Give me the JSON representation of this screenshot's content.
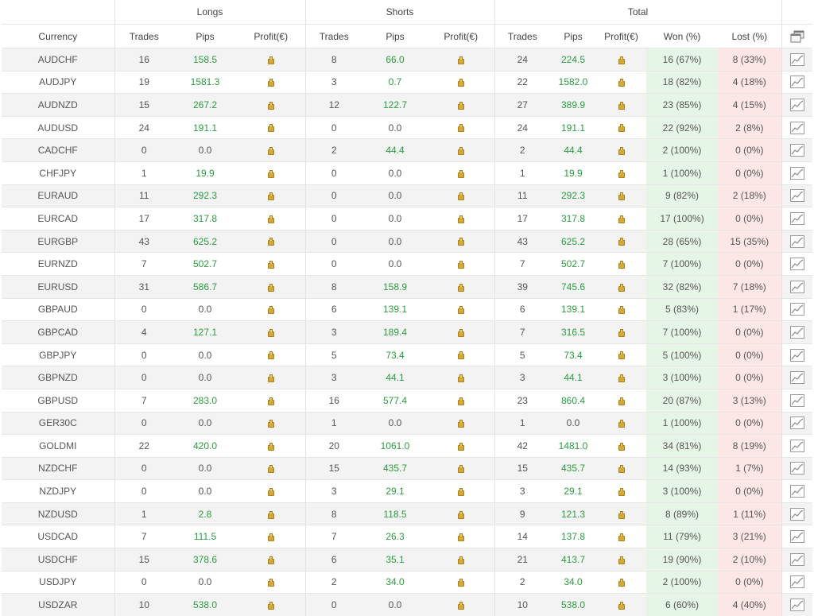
{
  "groups": {
    "longs": "Longs",
    "shorts": "Shorts",
    "total": "Total"
  },
  "columns": {
    "currency": "Currency",
    "trades": "Trades",
    "pips": "Pips",
    "profit": "Profit(€)",
    "won": "Won (%)",
    "lost": "Lost (%)"
  },
  "colors": {
    "positive": "#2a9d3f",
    "won_bg": "#e6f6e6",
    "lost_bg": "#fde6e6"
  },
  "icons": {
    "header": "popup-windows-icon",
    "row": "chart-icon",
    "profit": "money-bag-icon"
  },
  "rows": [
    {
      "currency": "AUDCHF",
      "lt": "16",
      "lp": "158.5",
      "st": "8",
      "sp": "66.0",
      "tt": "24",
      "tp": "224.5",
      "won": "16 (67%)",
      "lost": "8 (33%)"
    },
    {
      "currency": "AUDJPY",
      "lt": "19",
      "lp": "1581.3",
      "st": "3",
      "sp": "0.7",
      "tt": "22",
      "tp": "1582.0",
      "won": "18 (82%)",
      "lost": "4 (18%)"
    },
    {
      "currency": "AUDNZD",
      "lt": "15",
      "lp": "267.2",
      "st": "12",
      "sp": "122.7",
      "tt": "27",
      "tp": "389.9",
      "won": "23 (85%)",
      "lost": "4 (15%)"
    },
    {
      "currency": "AUDUSD",
      "lt": "24",
      "lp": "191.1",
      "st": "0",
      "sp": "0.0",
      "tt": "24",
      "tp": "191.1",
      "won": "22 (92%)",
      "lost": "2 (8%)"
    },
    {
      "currency": "CADCHF",
      "lt": "0",
      "lp": "0.0",
      "st": "2",
      "sp": "44.4",
      "tt": "2",
      "tp": "44.4",
      "won": "2 (100%)",
      "lost": "0 (0%)"
    },
    {
      "currency": "CHFJPY",
      "lt": "1",
      "lp": "19.9",
      "st": "0",
      "sp": "0.0",
      "tt": "1",
      "tp": "19.9",
      "won": "1 (100%)",
      "lost": "0 (0%)"
    },
    {
      "currency": "EURAUD",
      "lt": "11",
      "lp": "292.3",
      "st": "0",
      "sp": "0.0",
      "tt": "11",
      "tp": "292.3",
      "won": "9 (82%)",
      "lost": "2 (18%)"
    },
    {
      "currency": "EURCAD",
      "lt": "17",
      "lp": "317.8",
      "st": "0",
      "sp": "0.0",
      "tt": "17",
      "tp": "317.8",
      "won": "17 (100%)",
      "lost": "0 (0%)"
    },
    {
      "currency": "EURGBP",
      "lt": "43",
      "lp": "625.2",
      "st": "0",
      "sp": "0.0",
      "tt": "43",
      "tp": "625.2",
      "won": "28 (65%)",
      "lost": "15 (35%)"
    },
    {
      "currency": "EURNZD",
      "lt": "7",
      "lp": "502.7",
      "st": "0",
      "sp": "0.0",
      "tt": "7",
      "tp": "502.7",
      "won": "7 (100%)",
      "lost": "0 (0%)"
    },
    {
      "currency": "EURUSD",
      "lt": "31",
      "lp": "586.7",
      "st": "8",
      "sp": "158.9",
      "tt": "39",
      "tp": "745.6",
      "won": "32 (82%)",
      "lost": "7 (18%)"
    },
    {
      "currency": "GBPAUD",
      "lt": "0",
      "lp": "0.0",
      "st": "6",
      "sp": "139.1",
      "tt": "6",
      "tp": "139.1",
      "won": "5 (83%)",
      "lost": "1 (17%)"
    },
    {
      "currency": "GBPCAD",
      "lt": "4",
      "lp": "127.1",
      "st": "3",
      "sp": "189.4",
      "tt": "7",
      "tp": "316.5",
      "won": "7 (100%)",
      "lost": "0 (0%)"
    },
    {
      "currency": "GBPJPY",
      "lt": "0",
      "lp": "0.0",
      "st": "5",
      "sp": "73.4",
      "tt": "5",
      "tp": "73.4",
      "won": "5 (100%)",
      "lost": "0 (0%)"
    },
    {
      "currency": "GBPNZD",
      "lt": "0",
      "lp": "0.0",
      "st": "3",
      "sp": "44.1",
      "tt": "3",
      "tp": "44.1",
      "won": "3 (100%)",
      "lost": "0 (0%)"
    },
    {
      "currency": "GBPUSD",
      "lt": "7",
      "lp": "283.0",
      "st": "16",
      "sp": "577.4",
      "tt": "23",
      "tp": "860.4",
      "won": "20 (87%)",
      "lost": "3 (13%)"
    },
    {
      "currency": "GER30C",
      "lt": "0",
      "lp": "0.0",
      "st": "1",
      "sp": "0.0",
      "tt": "1",
      "tp": "0.0",
      "won": "1 (100%)",
      "lost": "0 (0%)"
    },
    {
      "currency": "GOLDMI",
      "lt": "22",
      "lp": "420.0",
      "st": "20",
      "sp": "1061.0",
      "tt": "42",
      "tp": "1481.0",
      "won": "34 (81%)",
      "lost": "8 (19%)"
    },
    {
      "currency": "NZDCHF",
      "lt": "0",
      "lp": "0.0",
      "st": "15",
      "sp": "435.7",
      "tt": "15",
      "tp": "435.7",
      "won": "14 (93%)",
      "lost": "1 (7%)"
    },
    {
      "currency": "NZDJPY",
      "lt": "0",
      "lp": "0.0",
      "st": "3",
      "sp": "29.1",
      "tt": "3",
      "tp": "29.1",
      "won": "3 (100%)",
      "lost": "0 (0%)"
    },
    {
      "currency": "NZDUSD",
      "lt": "1",
      "lp": "2.8",
      "st": "8",
      "sp": "118.5",
      "tt": "9",
      "tp": "121.3",
      "won": "8 (89%)",
      "lost": "1 (11%)"
    },
    {
      "currency": "USDCAD",
      "lt": "7",
      "lp": "111.5",
      "st": "7",
      "sp": "26.3",
      "tt": "14",
      "tp": "137.8",
      "won": "11 (79%)",
      "lost": "3 (21%)"
    },
    {
      "currency": "USDCHF",
      "lt": "15",
      "lp": "378.6",
      "st": "6",
      "sp": "35.1",
      "tt": "21",
      "tp": "413.7",
      "won": "19 (90%)",
      "lost": "2 (10%)"
    },
    {
      "currency": "USDJPY",
      "lt": "0",
      "lp": "0.0",
      "st": "2",
      "sp": "34.0",
      "tt": "2",
      "tp": "34.0",
      "won": "2 (100%)",
      "lost": "0 (0%)"
    },
    {
      "currency": "USDZAR",
      "lt": "10",
      "lp": "538.0",
      "st": "0",
      "sp": "0.0",
      "tt": "10",
      "tp": "538.0",
      "won": "6 (60%)",
      "lost": "4 (40%)"
    }
  ]
}
